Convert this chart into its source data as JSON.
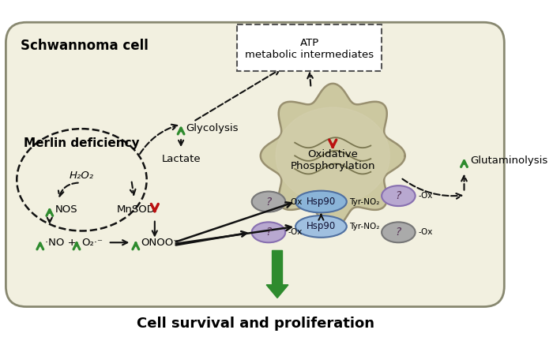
{
  "cell_label": "Schwannoma cell",
  "merlin_label": "Merlin deficiency",
  "atp_label": "ATP\nmetabolic intermediates",
  "ox_phos_label": "Oxidative\nPhosphorylation",
  "glycolysis_label": "Glycolysis",
  "lactate_label": "Lactate",
  "glutaminolysis_label": "Glutaminolysis",
  "h2o2_label": "H₂O₂",
  "title": "Cell survival and proliferation",
  "green_arrow": "#2e8b2e",
  "red_arrow": "#bb1111",
  "black": "#111111",
  "hsp90_upper_fill": "#8ab4d8",
  "hsp90_lower_fill": "#a0c0e0",
  "hsp90_stroke": "#5070a0",
  "q_purple_fill": "#b8a8d0",
  "q_purple_stroke": "#8870b0",
  "q_gray_fill": "#aaaaaa",
  "q_gray_stroke": "#777777",
  "cell_fill": "#f2f0e0",
  "cell_stroke": "#888870",
  "mito_fill": "#ccc8a0",
  "mito_stroke": "#999070",
  "atp_box_fill": "white",
  "atp_box_stroke": "#555555"
}
